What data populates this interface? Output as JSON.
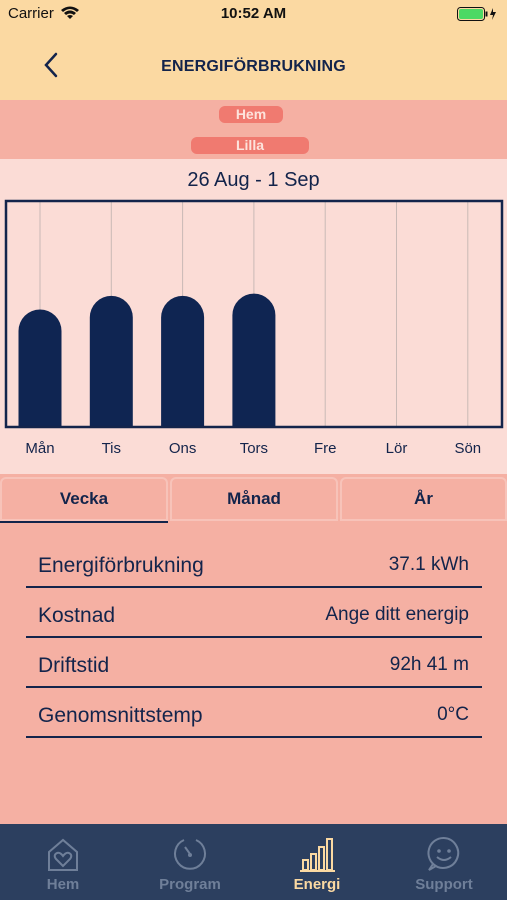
{
  "status_bar": {
    "carrier": "Carrier",
    "time": "10:52 AM"
  },
  "nav": {
    "title": "ENERGIFÖRBRUKNING"
  },
  "selector": {
    "home": "Hem",
    "device": "Lilla"
  },
  "chart": {
    "range_label": "26 Aug - 1 Sep"
  },
  "chart_data": {
    "type": "bar",
    "categories": [
      "Mån",
      "Tis",
      "Ons",
      "Tors",
      "Fre",
      "Lör",
      "Sön"
    ],
    "values": [
      0.52,
      0.58,
      0.58,
      0.59,
      0,
      0,
      0
    ],
    "title": "",
    "xlabel": "",
    "ylabel": "",
    "ylim": [
      0,
      1
    ],
    "bar_color": "#0f2552",
    "grid": true
  },
  "period_tabs": {
    "week": "Vecka",
    "month": "Månad",
    "year": "År",
    "active": "week"
  },
  "stats": [
    {
      "label": "Energiförbrukning",
      "value": "37.1 kWh"
    },
    {
      "label": "Kostnad",
      "value": "Ange ditt energip"
    },
    {
      "label": "Driftstid",
      "value": "92h 41 m"
    },
    {
      "label": "Genomsnittstemp",
      "value": "0°C"
    }
  ],
  "tab_bar": {
    "items": [
      {
        "label": "Hem",
        "icon": "home-heart-icon"
      },
      {
        "label": "Program",
        "icon": "program-dial-icon"
      },
      {
        "label": "Energi",
        "icon": "energy-bars-icon"
      },
      {
        "label": "Support",
        "icon": "support-smiley-icon"
      }
    ],
    "active": "Energi"
  },
  "colors": {
    "header": "#fbd9a2",
    "background": "#f5b0a3",
    "chart_background": "#fbdcd6",
    "accent": "#13244b",
    "tab_bar": "#2c3f5f",
    "pill": "#f07a70"
  }
}
